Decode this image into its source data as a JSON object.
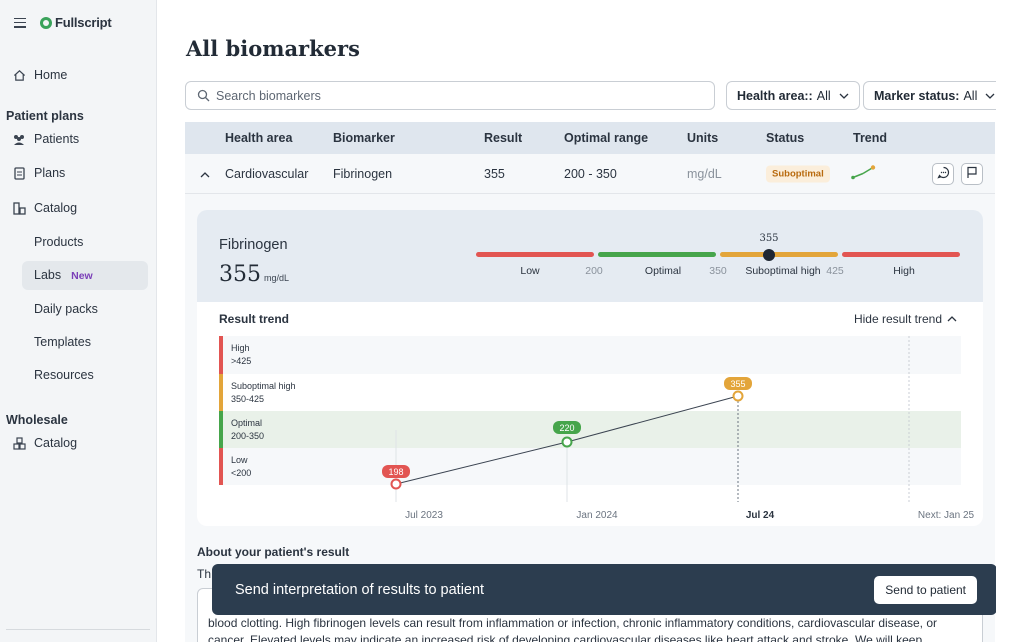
{
  "app": {
    "brand": "Fullscript"
  },
  "sidebar": {
    "home": "Home",
    "patient_plans_heading": "Patient plans",
    "patients": "Patients",
    "plans": "Plans",
    "catalog": "Catalog",
    "catalog_items": {
      "products": "Products",
      "labs": "Labs",
      "labs_badge": "New",
      "daily_packs": "Daily packs",
      "templates": "Templates",
      "resources": "Resources"
    },
    "wholesale_heading": "Wholesale",
    "wholesale_catalog": "Catalog"
  },
  "page": {
    "title": "All biomarkers"
  },
  "search": {
    "placeholder": "Search biomarkers"
  },
  "filters": {
    "health_area_label": "Health area::",
    "health_area_value": "All",
    "marker_status_label": "Marker status:",
    "marker_status_value": "All"
  },
  "table": {
    "columns": [
      "Health area",
      "Biomarker",
      "Result",
      "Optimal range",
      "Units",
      "Status",
      "Trend"
    ],
    "row": {
      "health_area": "Cardiovascular",
      "biomarker": "Fibrinogen",
      "result": "355",
      "optimal_range": "200 - 350",
      "units": "mg/dL",
      "status": "Suboptimal"
    }
  },
  "detail": {
    "name": "Fibrinogen",
    "value": "355",
    "unit": "mg/dL",
    "range_bar": {
      "marker_value": "355",
      "labels": [
        "Low",
        "Optimal",
        "Suboptimal high",
        "High"
      ],
      "thresholds": [
        "200",
        "350",
        "425"
      ]
    },
    "trend": {
      "title": "Result trend",
      "hide_label": "Hide result trend",
      "bands": [
        {
          "name": "High",
          "range": ">425"
        },
        {
          "name": "Suboptimal high",
          "range": "350-425"
        },
        {
          "name": "Optimal",
          "range": "200-350"
        },
        {
          "name": "Low",
          "range": "<200"
        }
      ],
      "points": [
        {
          "date": "Jul 2023",
          "value": "198"
        },
        {
          "date": "Jan 2024",
          "value": "220"
        },
        {
          "date": "Jul 24",
          "value": "355"
        }
      ],
      "next_label": "Next: Jan 25"
    }
  },
  "about": {
    "title": "About your patient's result",
    "prefix": "Th",
    "text_line1": "blood clotting. High fibrinogen levels can result from inflammation or infection, chronic inflammatory conditions, cardiovascular disease, or",
    "text_line2": "cancer. Elevated levels may indicate an increased risk of developing cardiovascular diseases like heart attack and stroke. We will keep"
  },
  "toast": {
    "message": "Send interpretation of results to patient",
    "button": "Send to patient"
  },
  "colors": {
    "low": "#e25552",
    "optimal": "#46a54b",
    "suboptimal": "#e3a53a",
    "high": "#e25552"
  }
}
